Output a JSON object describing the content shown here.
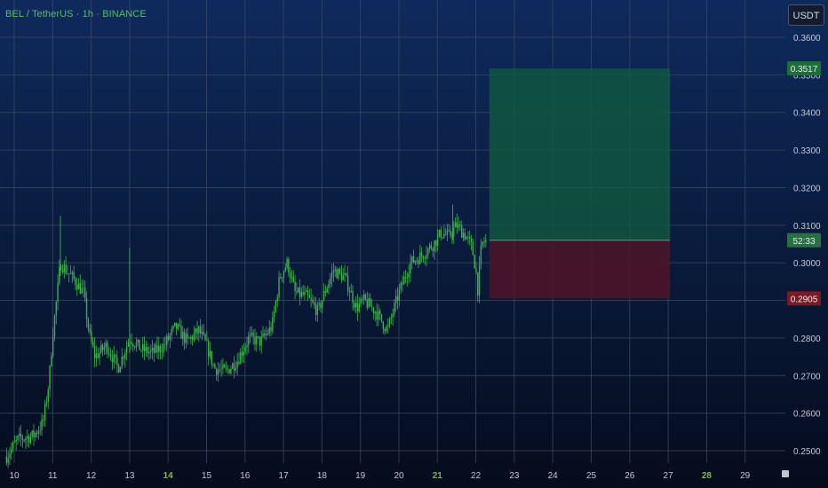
{
  "symbol": {
    "title": "BEL / TetherUS · 1h · BINANCE"
  },
  "currency_button": {
    "label": "USDT"
  },
  "colors": {
    "candle": "#3fae4d",
    "grid": "#3b4a66",
    "profit_zone": "#10593e",
    "loss_zone": "#4e1428",
    "tick_text": "#c3c8d2",
    "date_text": "#c3c8d2",
    "weekday_highlight": "#87b05a",
    "target_badge": "#1e6e3a",
    "stop_badge": "#7a1a24"
  },
  "chart_data": {
    "type": "candlestick",
    "title": "BEL / TetherUS · 1h · BINANCE",
    "y_axis": {
      "unit": "USDT",
      "ylim": [
        0.2475,
        0.365
      ],
      "ticks": [
        "0.3600",
        "0.3500",
        "0.3400",
        "0.3300",
        "0.3200",
        "0.3100",
        "0.3000",
        "0.2900",
        "0.2800",
        "0.2700",
        "0.2600",
        "0.2500"
      ]
    },
    "x_axis": {
      "xlim": [
        9.8,
        30.0
      ],
      "ticks": [
        {
          "day": 10,
          "label": "10",
          "highlight": false
        },
        {
          "day": 11,
          "label": "11",
          "highlight": false
        },
        {
          "day": 12,
          "label": "12",
          "highlight": false
        },
        {
          "day": 13,
          "label": "13",
          "highlight": false
        },
        {
          "day": 14,
          "label": "14",
          "highlight": true
        },
        {
          "day": 15,
          "label": "15",
          "highlight": false
        },
        {
          "day": 16,
          "label": "16",
          "highlight": false
        },
        {
          "day": 17,
          "label": "17",
          "highlight": false
        },
        {
          "day": 18,
          "label": "18",
          "highlight": false
        },
        {
          "day": 19,
          "label": "19",
          "highlight": false
        },
        {
          "day": 20,
          "label": "20",
          "highlight": false
        },
        {
          "day": 21,
          "label": "21",
          "highlight": true
        },
        {
          "day": 22,
          "label": "22",
          "highlight": false
        },
        {
          "day": 23,
          "label": "23",
          "highlight": false
        },
        {
          "day": 24,
          "label": "24",
          "highlight": false
        },
        {
          "day": 25,
          "label": "25",
          "highlight": false
        },
        {
          "day": 26,
          "label": "26",
          "highlight": false
        },
        {
          "day": 27,
          "label": "27",
          "highlight": false
        },
        {
          "day": 28,
          "label": "28",
          "highlight": true
        },
        {
          "day": 29,
          "label": "29",
          "highlight": false
        }
      ]
    },
    "grid": true,
    "price_path": [
      [
        9.8,
        0.2485
      ],
      [
        10.1,
        0.253
      ],
      [
        10.5,
        0.254
      ],
      [
        10.75,
        0.2575
      ],
      [
        10.9,
        0.268
      ],
      [
        11.0,
        0.281
      ],
      [
        11.1,
        0.29
      ],
      [
        11.2,
        0.3
      ],
      [
        11.35,
        0.298
      ],
      [
        11.6,
        0.295
      ],
      [
        11.8,
        0.292
      ],
      [
        11.95,
        0.281
      ],
      [
        12.1,
        0.275
      ],
      [
        12.4,
        0.278
      ],
      [
        12.7,
        0.272
      ],
      [
        13.0,
        0.28
      ],
      [
        13.3,
        0.277
      ],
      [
        13.6,
        0.276
      ],
      [
        13.9,
        0.278
      ],
      [
        14.2,
        0.283
      ],
      [
        14.5,
        0.279
      ],
      [
        14.8,
        0.282
      ],
      [
        15.0,
        0.278
      ],
      [
        15.2,
        0.272
      ],
      [
        15.5,
        0.271
      ],
      [
        15.8,
        0.274
      ],
      [
        16.1,
        0.28
      ],
      [
        16.4,
        0.279
      ],
      [
        16.7,
        0.283
      ],
      [
        16.9,
        0.296
      ],
      [
        17.1,
        0.3
      ],
      [
        17.3,
        0.292
      ],
      [
        17.6,
        0.291
      ],
      [
        17.9,
        0.287
      ],
      [
        18.1,
        0.293
      ],
      [
        18.3,
        0.298
      ],
      [
        18.6,
        0.296
      ],
      [
        18.9,
        0.288
      ],
      [
        19.1,
        0.29
      ],
      [
        19.4,
        0.287
      ],
      [
        19.7,
        0.282
      ],
      [
        20.0,
        0.292
      ],
      [
        20.3,
        0.3
      ],
      [
        20.6,
        0.302
      ],
      [
        20.9,
        0.305
      ],
      [
        21.1,
        0.308
      ],
      [
        21.3,
        0.307
      ],
      [
        21.5,
        0.31
      ],
      [
        21.75,
        0.307
      ],
      [
        21.9,
        0.304
      ],
      [
        22.0,
        0.298
      ],
      [
        22.05,
        0.293
      ],
      [
        22.15,
        0.305
      ],
      [
        22.3,
        0.306
      ]
    ],
    "position": {
      "type": "long",
      "start_day": 22.35,
      "end_day": 27.05,
      "entry": 0.306,
      "target": 0.3517,
      "stop": 0.2905
    },
    "price_labels": {
      "target": "0.3517",
      "current": "52:33",
      "stop": "0.2905"
    }
  }
}
